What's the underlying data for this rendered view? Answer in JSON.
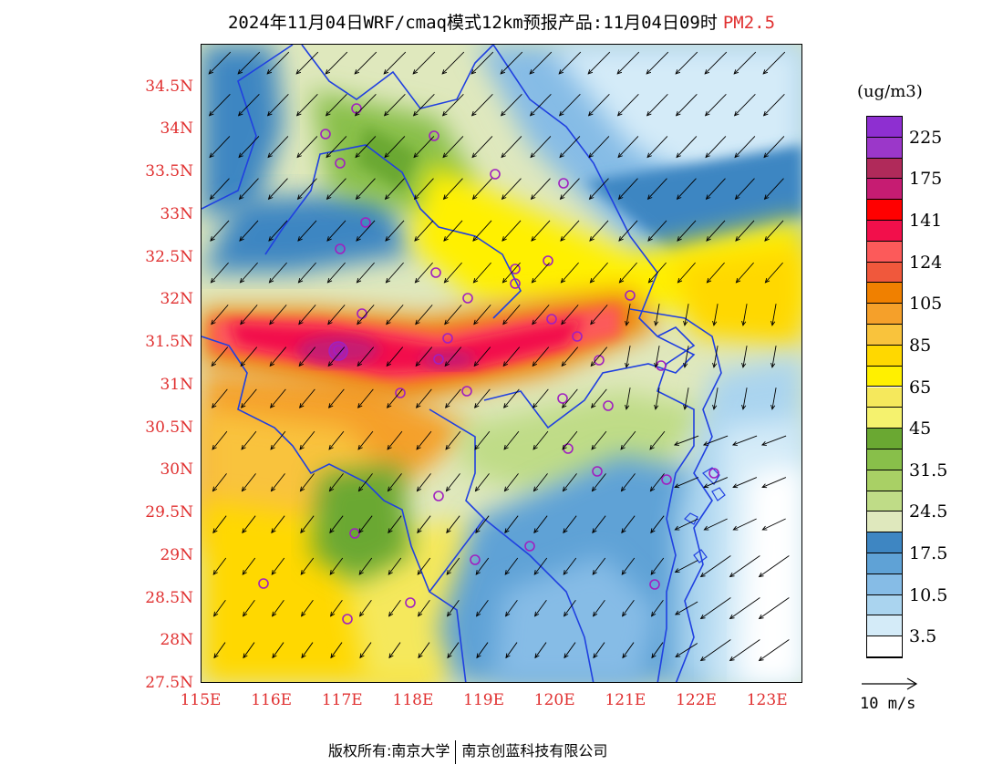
{
  "title": {
    "main": "2024年11月04日WRF/cmaq模式12km预报产品:11月04日09时",
    "species": "PM2.5",
    "species_color": "#e03030"
  },
  "map": {
    "lon_range": [
      115,
      123.5
    ],
    "lat_range": [
      27.5,
      35.0
    ],
    "lat_ticks": [
      "34.5N",
      "34N",
      "33.5N",
      "33N",
      "32.5N",
      "32N",
      "31.5N",
      "31N",
      "30.5N",
      "30N",
      "29.5N",
      "29N",
      "28.5N",
      "28N",
      "27.5N"
    ],
    "lon_ticks": [
      "115E",
      "116E",
      "117E",
      "118E",
      "119E",
      "120E",
      "121E",
      "122E",
      "123E"
    ],
    "tick_color": "#e03030",
    "boundary_color": "#2040e0",
    "station_marker_color": "#a020c0",
    "wind_direction": "northeasterly"
  },
  "colorbar": {
    "unit": "(ug/m3)",
    "labels": [
      "225",
      "175",
      "141",
      "124",
      "105",
      "85",
      "65",
      "45",
      "31.5",
      "24.5",
      "17.5",
      "10.5",
      "3.5"
    ],
    "colors_top_to_bottom": [
      "#8e2fd1",
      "#9b37c9",
      "#b02a5a",
      "#c61c72",
      "#ff0000",
      "#f20f4b",
      "#fc5a5a",
      "#f0583c",
      "#f08000",
      "#f5a02a",
      "#f9c33c",
      "#ffd800",
      "#fff000",
      "#f5e85c",
      "#f5f26e",
      "#6aa832",
      "#88bf4a",
      "#a9d065",
      "#bfdc87",
      "#dfe8bd",
      "#3e86c2",
      "#5fa2d6",
      "#86bce6",
      "#aad4ef",
      "#d4ebf8",
      "#ffffff"
    ]
  },
  "wind_key": {
    "label": "10 m/s"
  },
  "copyright": {
    "left": "版权所有:南京大学",
    "right": "南京创蓝科技有限公司"
  }
}
